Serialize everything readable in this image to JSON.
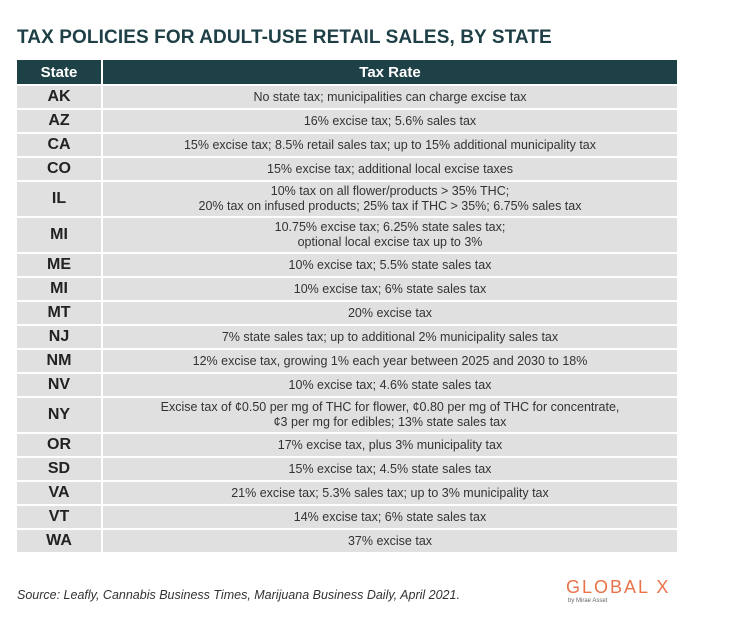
{
  "title": "TAX POLICIES FOR ADULT-USE RETAIL SALES, BY STATE",
  "table": {
    "headers": [
      "State",
      "Tax Rate"
    ],
    "rows": [
      {
        "state": "AK",
        "rate": [
          "No state tax; municipalities can charge excise tax"
        ]
      },
      {
        "state": "AZ",
        "rate": [
          "16% excise tax; 5.6% sales tax"
        ]
      },
      {
        "state": "CA",
        "rate": [
          "15% excise tax; 8.5% retail sales tax; up to 15% additional municipality tax"
        ]
      },
      {
        "state": "CO",
        "rate": [
          "15% excise tax; additional local excise taxes"
        ]
      },
      {
        "state": "IL",
        "rate": [
          "10% tax on all flower/products > 35% THC;",
          "20% tax on infused products; 25% tax if THC > 35%; 6.75% sales tax"
        ]
      },
      {
        "state": "MI",
        "rate": [
          "10.75% excise tax; 6.25% state sales tax;",
          "optional local excise tax up to 3%"
        ]
      },
      {
        "state": "ME",
        "rate": [
          "10% excise tax; 5.5% state sales tax"
        ]
      },
      {
        "state": "MI",
        "rate": [
          "10% excise tax; 6% state sales tax"
        ]
      },
      {
        "state": "MT",
        "rate": [
          "20% excise tax"
        ]
      },
      {
        "state": "NJ",
        "rate": [
          "7% state sales tax; up to additional 2% municipality sales tax"
        ]
      },
      {
        "state": "NM",
        "rate": [
          "12% excise tax, growing 1% each year between 2025 and 2030 to 18%"
        ]
      },
      {
        "state": "NV",
        "rate": [
          "10% excise tax; 4.6% state sales tax"
        ]
      },
      {
        "state": "NY",
        "rate": [
          "Excise tax of ¢0.50 per mg of THC for flower, ¢0.80 per mg of THC for concentrate,",
          "¢3 per mg for edibles; 13% state sales tax"
        ]
      },
      {
        "state": "OR",
        "rate": [
          "17% excise tax, plus 3% municipality tax"
        ]
      },
      {
        "state": "SD",
        "rate": [
          "15% excise tax; 4.5% state sales tax"
        ]
      },
      {
        "state": "VA",
        "rate": [
          "21% excise tax; 5.3% sales tax; up to 3% municipality tax"
        ]
      },
      {
        "state": "VT",
        "rate": [
          "14% excise tax; 6% state sales tax"
        ]
      },
      {
        "state": "WA",
        "rate": [
          "37% excise tax"
        ]
      }
    ]
  },
  "source": "Source: Leafly, Cannabis Business Times, Marijuana Business Daily, April 2021.",
  "logo": {
    "word": "GLOBAL X",
    "sub": "by Mirae Asset"
  },
  "colors": {
    "header_bg": "#1e4147",
    "row_bg": "#e0e0e0",
    "title": "#1d3f45",
    "logo": "#e8734a"
  }
}
